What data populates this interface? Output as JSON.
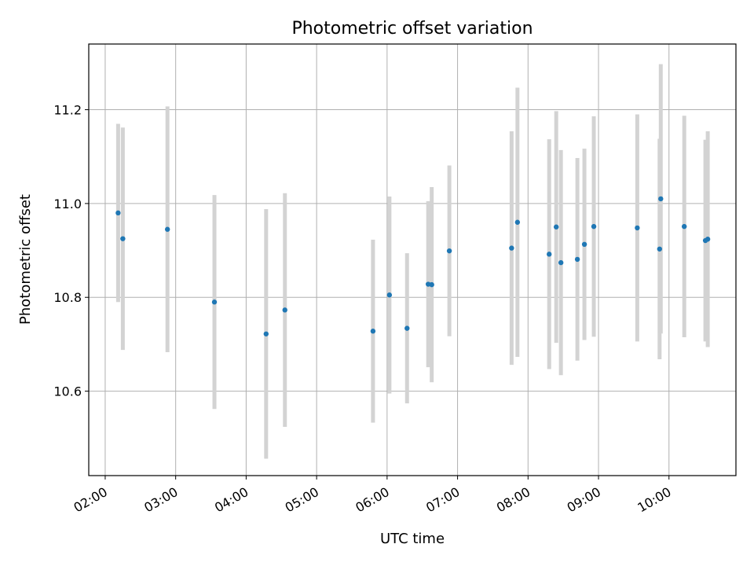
{
  "chart_data": {
    "type": "scatter",
    "title": "Photometric offset variation",
    "xlabel": "UTC time",
    "ylabel": "Photometric offset",
    "x_ticks": [
      "02:00",
      "03:00",
      "04:00",
      "05:00",
      "06:00",
      "07:00",
      "08:00",
      "09:00",
      "10:00"
    ],
    "y_ticks": [
      "10.6",
      "10.8",
      "11.0",
      "11.2"
    ],
    "xlim": [
      "01:46",
      "10:57"
    ],
    "ylim": [
      10.42,
      11.34
    ],
    "grid": true,
    "legend": "none",
    "colors": {
      "points": "#1f77b4",
      "errorbars": "#d3d3d3",
      "grid": "#b0b0b0"
    },
    "points": [
      {
        "x": "02:11",
        "y": 10.98,
        "err": 0.19
      },
      {
        "x": "02:15",
        "y": 10.925,
        "err": 0.237
      },
      {
        "x": "02:53",
        "y": 10.945,
        "err": 0.262
      },
      {
        "x": "03:33",
        "y": 10.79,
        "err": 0.228
      },
      {
        "x": "04:17",
        "y": 10.722,
        "err": 0.266
      },
      {
        "x": "04:33",
        "y": 10.773,
        "err": 0.249
      },
      {
        "x": "05:48",
        "y": 10.728,
        "err": 0.195
      },
      {
        "x": "06:02",
        "y": 10.805,
        "err": 0.21
      },
      {
        "x": "06:17",
        "y": 10.734,
        "err": 0.16
      },
      {
        "x": "06:35",
        "y": 10.828,
        "err": 0.177
      },
      {
        "x": "06:38",
        "y": 10.827,
        "err": 0.208
      },
      {
        "x": "06:53",
        "y": 10.899,
        "err": 0.182
      },
      {
        "x": "07:46",
        "y": 10.905,
        "err": 0.249
      },
      {
        "x": "07:51",
        "y": 10.96,
        "err": 0.287
      },
      {
        "x": "08:18",
        "y": 10.892,
        "err": 0.245
      },
      {
        "x": "08:24",
        "y": 10.95,
        "err": 0.247
      },
      {
        "x": "08:28",
        "y": 10.874,
        "err": 0.24
      },
      {
        "x": "08:42",
        "y": 10.881,
        "err": 0.216
      },
      {
        "x": "08:48",
        "y": 10.913,
        "err": 0.204
      },
      {
        "x": "08:56",
        "y": 10.951,
        "err": 0.235
      },
      {
        "x": "09:33",
        "y": 10.948,
        "err": 0.242
      },
      {
        "x": "09:52",
        "y": 10.903,
        "err": 0.235
      },
      {
        "x": "09:53",
        "y": 11.01,
        "err": 0.287
      },
      {
        "x": "10:13",
        "y": 10.951,
        "err": 0.236
      },
      {
        "x": "10:31",
        "y": 10.921,
        "err": 0.215
      },
      {
        "x": "10:33",
        "y": 10.924,
        "err": 0.23
      }
    ]
  }
}
